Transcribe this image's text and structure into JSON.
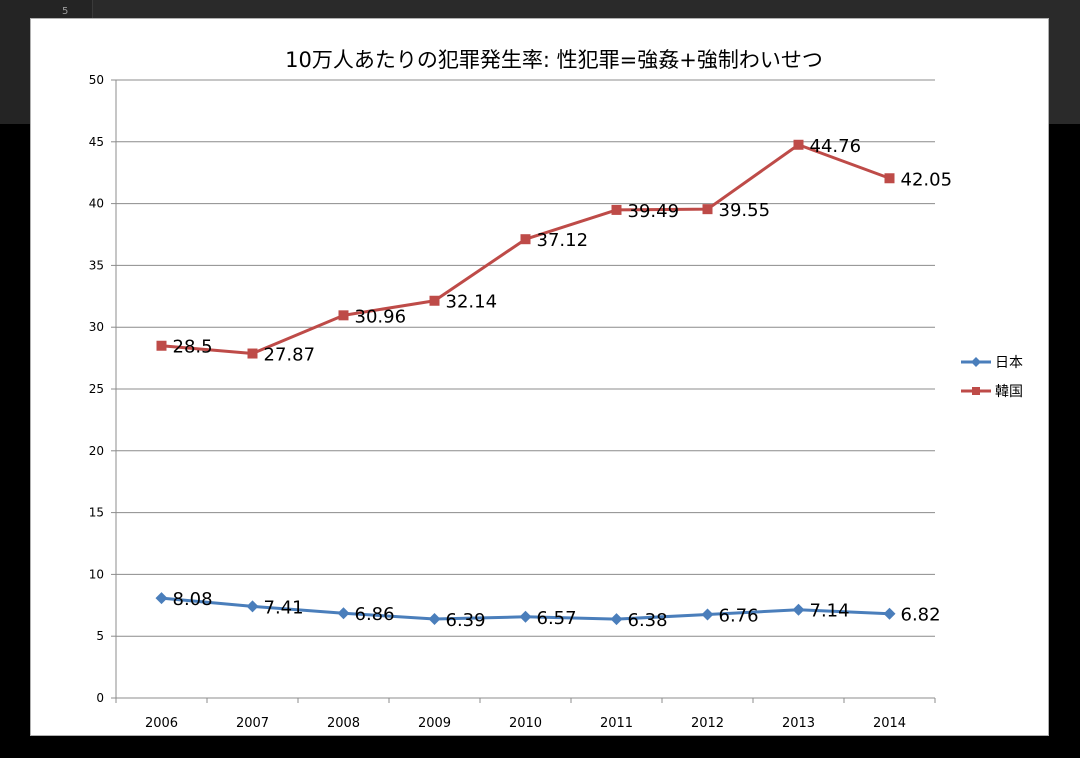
{
  "background": {
    "row_number": "5"
  },
  "chart_data": {
    "type": "line",
    "title": "10万人あたりの犯罪発生率: 性犯罪=強姦+強制わいせつ",
    "xlabel": "",
    "ylabel": "",
    "categories": [
      "2006",
      "2007",
      "2008",
      "2009",
      "2010",
      "2011",
      "2012",
      "2013",
      "2014"
    ],
    "ylim": [
      0,
      50
    ],
    "yticks": [
      0,
      5,
      10,
      15,
      20,
      25,
      30,
      35,
      40,
      45,
      50
    ],
    "grid": true,
    "legend_position": "right",
    "series": [
      {
        "name": "日本",
        "values": [
          8.08,
          7.41,
          6.86,
          6.39,
          6.57,
          6.38,
          6.76,
          7.14,
          6.82
        ],
        "labels": [
          "8.08",
          "7.41",
          "6.86",
          "6.39",
          "6.57",
          "6.38",
          "6.76",
          "7.14",
          "6.82"
        ],
        "color": "#4a7ebb",
        "marker": "diamond"
      },
      {
        "name": "韓国",
        "values": [
          28.5,
          27.87,
          30.96,
          32.14,
          37.12,
          39.49,
          39.55,
          44.76,
          42.05
        ],
        "labels": [
          "28.5",
          "27.87",
          "30.96",
          "32.14",
          "37.12",
          "39.49",
          "39.55",
          "44.76",
          "42.05"
        ],
        "color": "#be4b48",
        "marker": "square"
      }
    ]
  }
}
